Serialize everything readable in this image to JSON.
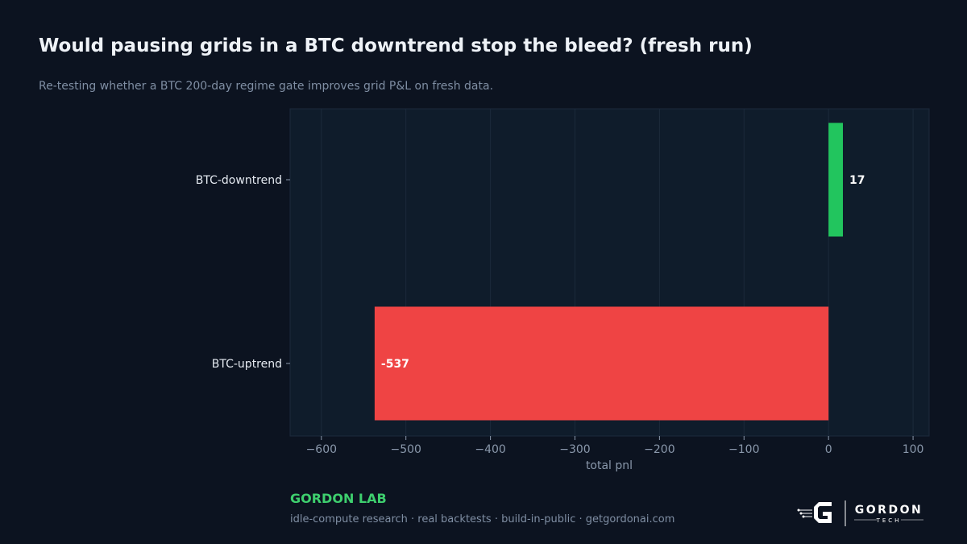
{
  "header": {
    "title": "Would pausing grids in a BTC downtrend stop the bleed? (fresh run)",
    "subtitle": "Re-testing whether a BTC 200-day regime gate improves grid P&L on fresh data."
  },
  "chart_data": {
    "type": "bar",
    "orientation": "horizontal",
    "categories": [
      "BTC-downtrend",
      "BTC-uptrend"
    ],
    "values": [
      17,
      -537
    ],
    "data_labels": [
      "17",
      "-537"
    ],
    "bar_colors": [
      "#22c55e",
      "#ef4444"
    ],
    "xlabel": "total pnl",
    "ylabel": "",
    "xlim": [
      -637,
      119
    ],
    "xticks": [
      -600,
      -500,
      -400,
      -300,
      -200,
      -100,
      0,
      100
    ],
    "xtick_labels": [
      "−600",
      "−500",
      "−400",
      "−300",
      "−200",
      "−100",
      "0",
      "100"
    ],
    "grid": true,
    "legend": "none"
  },
  "footer": {
    "brand": "GORDON LAB",
    "tagline": "idle-compute research · real backtests · build-in-public · getgordonai.com",
    "logo_word": "GORDON",
    "logo_sub": "TECH"
  },
  "colors": {
    "background": "#0c1320",
    "plot_background": "#0f1c2b",
    "positive": "#22c55e",
    "negative": "#ef4444",
    "brand": "#3ecf6e"
  }
}
